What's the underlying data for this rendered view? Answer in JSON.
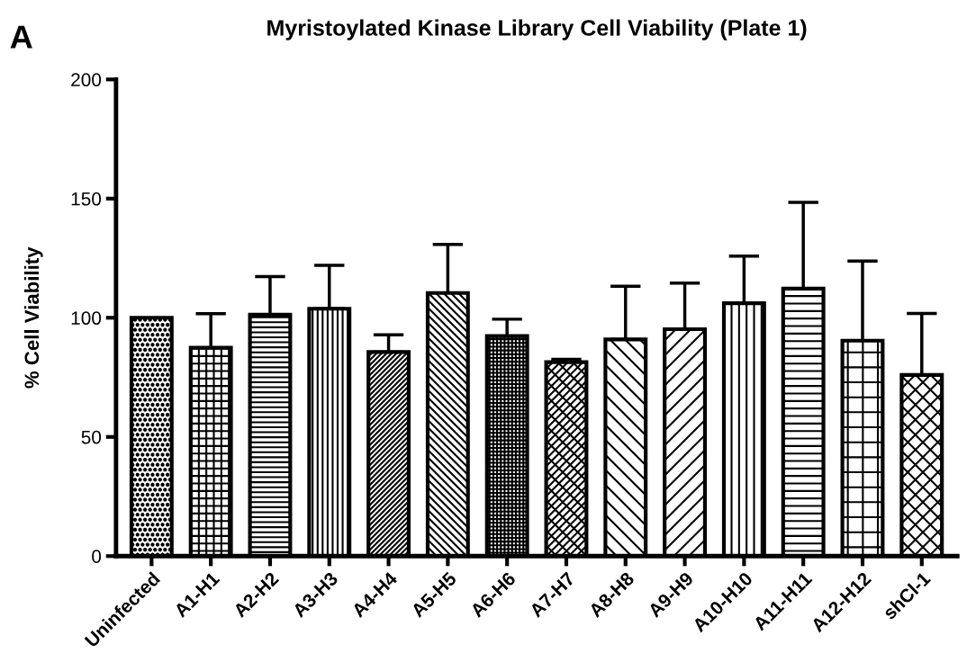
{
  "chart_data": {
    "type": "bar",
    "title": "Myristoylated Kinase Library Cell Viability (Plate 1)",
    "ylabel": "% Cell Viability",
    "annotations": [
      "A"
    ],
    "categories": [
      "Uninfected",
      "A1-H1",
      "A2-H2",
      "A3-H3",
      "A4-H4",
      "A5-H5",
      "A6-H6",
      "A7-H7",
      "A8-H8",
      "A9-H9",
      "A10-H10",
      "A11-H11",
      "A12-H12",
      "shCl-1"
    ],
    "values": [
      100,
      87.4,
      101.3,
      103.8,
      85.6,
      110.4,
      92.3,
      81.4,
      90.9,
      95.2,
      106.1,
      112.2,
      90.4,
      76.0
    ],
    "errors": [
      null,
      [
        87.4,
        101.7
      ],
      [
        101.3,
        117.3
      ],
      [
        103.8,
        122.0
      ],
      [
        85.6,
        92.8
      ],
      [
        110.4,
        130.8
      ],
      [
        92.3,
        99.4
      ],
      [
        81.4,
        82.6
      ],
      [
        90.9,
        113.2
      ],
      [
        95.2,
        114.5
      ],
      [
        106.1,
        125.9
      ],
      [
        112.2,
        148.4
      ],
      [
        90.4,
        123.8
      ],
      [
        76.0,
        101.8
      ]
    ],
    "color": "#000000",
    "ylim": [
      0,
      200
    ],
    "yticks": [
      0,
      50,
      100,
      150,
      200
    ],
    "grid": false,
    "legend": false
  }
}
